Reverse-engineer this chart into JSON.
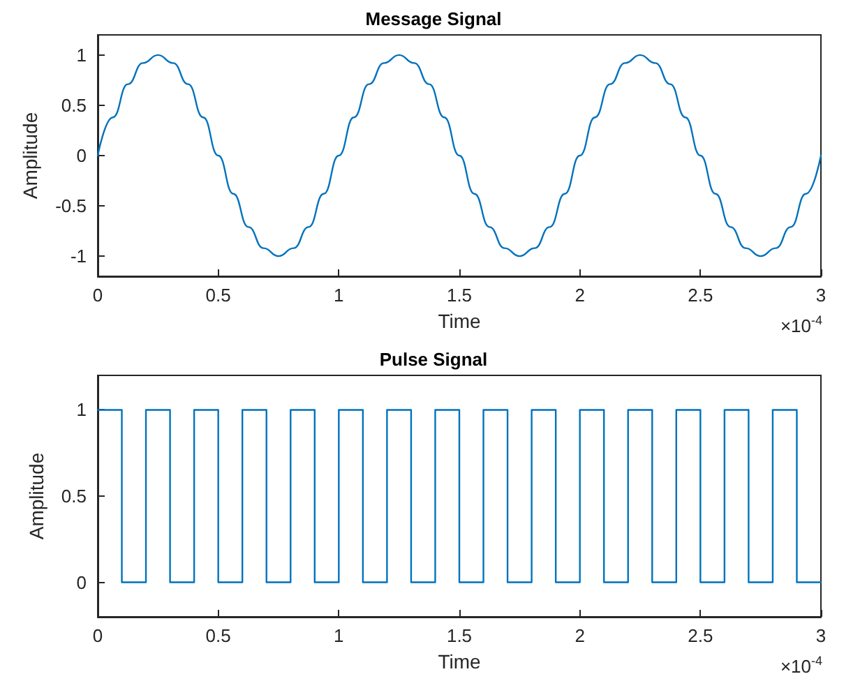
{
  "chart_data": [
    {
      "type": "line",
      "title": "Message Signal",
      "xlabel": "Time",
      "ylabel": "Amplitude",
      "annotations": [
        "×10$^{-4}$"
      ],
      "xlim": [
        0,
        3
      ],
      "ylim": [
        -1.2,
        1.2
      ],
      "xticks": [
        0,
        0.5,
        1,
        1.5,
        2,
        2.5,
        3
      ],
      "yticks": [
        -1,
        -0.5,
        0,
        0.5,
        1
      ],
      "grid": false,
      "series": [
        {
          "color": "#0072bd",
          "x": [
            0,
            0.0625,
            0.125,
            0.1875,
            0.25,
            0.3125,
            0.375,
            0.4375,
            0.5,
            0.5625,
            0.625,
            0.6875,
            0.75,
            0.8125,
            0.875,
            0.9375,
            1,
            1.0625,
            1.125,
            1.1875,
            1.25,
            1.3125,
            1.375,
            1.4375,
            1.5,
            1.5625,
            1.625,
            1.6875,
            1.75,
            1.8125,
            1.875,
            1.9375,
            2,
            2.0625,
            2.125,
            2.1875,
            2.25,
            2.3125,
            2.375,
            2.4375,
            2.5,
            2.5625,
            2.625,
            2.6875,
            2.75,
            2.8125,
            2.875,
            2.9375,
            3
          ],
          "values": [
            0,
            0.38,
            0.71,
            0.92,
            1,
            0.92,
            0.71,
            0.38,
            0,
            -0.38,
            -0.71,
            -0.92,
            -1,
            -0.92,
            -0.71,
            -0.38,
            0,
            0.38,
            0.71,
            0.92,
            1,
            0.92,
            0.71,
            0.38,
            0,
            -0.38,
            -0.71,
            -0.92,
            -1,
            -0.92,
            -0.71,
            -0.38,
            0,
            0.38,
            0.71,
            0.92,
            1,
            0.92,
            0.71,
            0.38,
            0,
            -0.38,
            -0.71,
            -0.92,
            -1,
            -0.92,
            -0.71,
            -0.38,
            0
          ]
        }
      ]
    },
    {
      "type": "step",
      "title": "Pulse Signal",
      "xlabel": "Time",
      "ylabel": "Amplitude",
      "annotations": [
        "×10$^{-4}$"
      ],
      "xlim": [
        0,
        3
      ],
      "ylim": [
        -0.2,
        1.2
      ],
      "xticks": [
        0,
        0.5,
        1,
        1.5,
        2,
        2.5,
        3
      ],
      "yticks": [
        0,
        0.5,
        1
      ],
      "grid": false,
      "series": [
        {
          "color": "#0072bd",
          "x": [
            0,
            0.1,
            0.2,
            0.3,
            0.4,
            0.5,
            0.6,
            0.7,
            0.8,
            0.9,
            1,
            1.1,
            1.2,
            1.3,
            1.4,
            1.5,
            1.6,
            1.7,
            1.8,
            1.9,
            2,
            2.1,
            2.2,
            2.3,
            2.4,
            2.5,
            2.6,
            2.7,
            2.8,
            2.9,
            3
          ],
          "values": [
            1,
            0,
            1,
            0,
            1,
            0,
            1,
            0,
            1,
            0,
            1,
            0,
            1,
            0,
            1,
            0,
            1,
            0,
            1,
            0,
            1,
            0,
            1,
            0,
            1,
            0,
            1,
            0,
            1,
            0,
            0
          ]
        }
      ]
    }
  ]
}
